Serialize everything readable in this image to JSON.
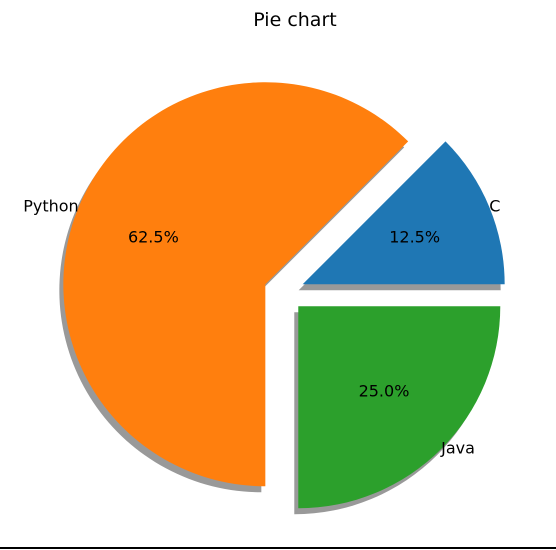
{
  "chart_data": {
    "type": "pie",
    "title": "Pie chart",
    "shadow": true,
    "start_angle_deg": 0,
    "direction": "counterclockwise",
    "slices": [
      {
        "label": "C",
        "value": 12.5,
        "pct_label": "12.5%",
        "color": "#1f77b4",
        "explode": 0.1
      },
      {
        "label": "Python",
        "value": 62.5,
        "pct_label": "62.5%",
        "color": "#ff7f0e",
        "explode": 0.1
      },
      {
        "label": "Java",
        "value": 25.0,
        "pct_label": "25.0%",
        "color": "#2ca02c",
        "explode": 0.1
      }
    ]
  }
}
